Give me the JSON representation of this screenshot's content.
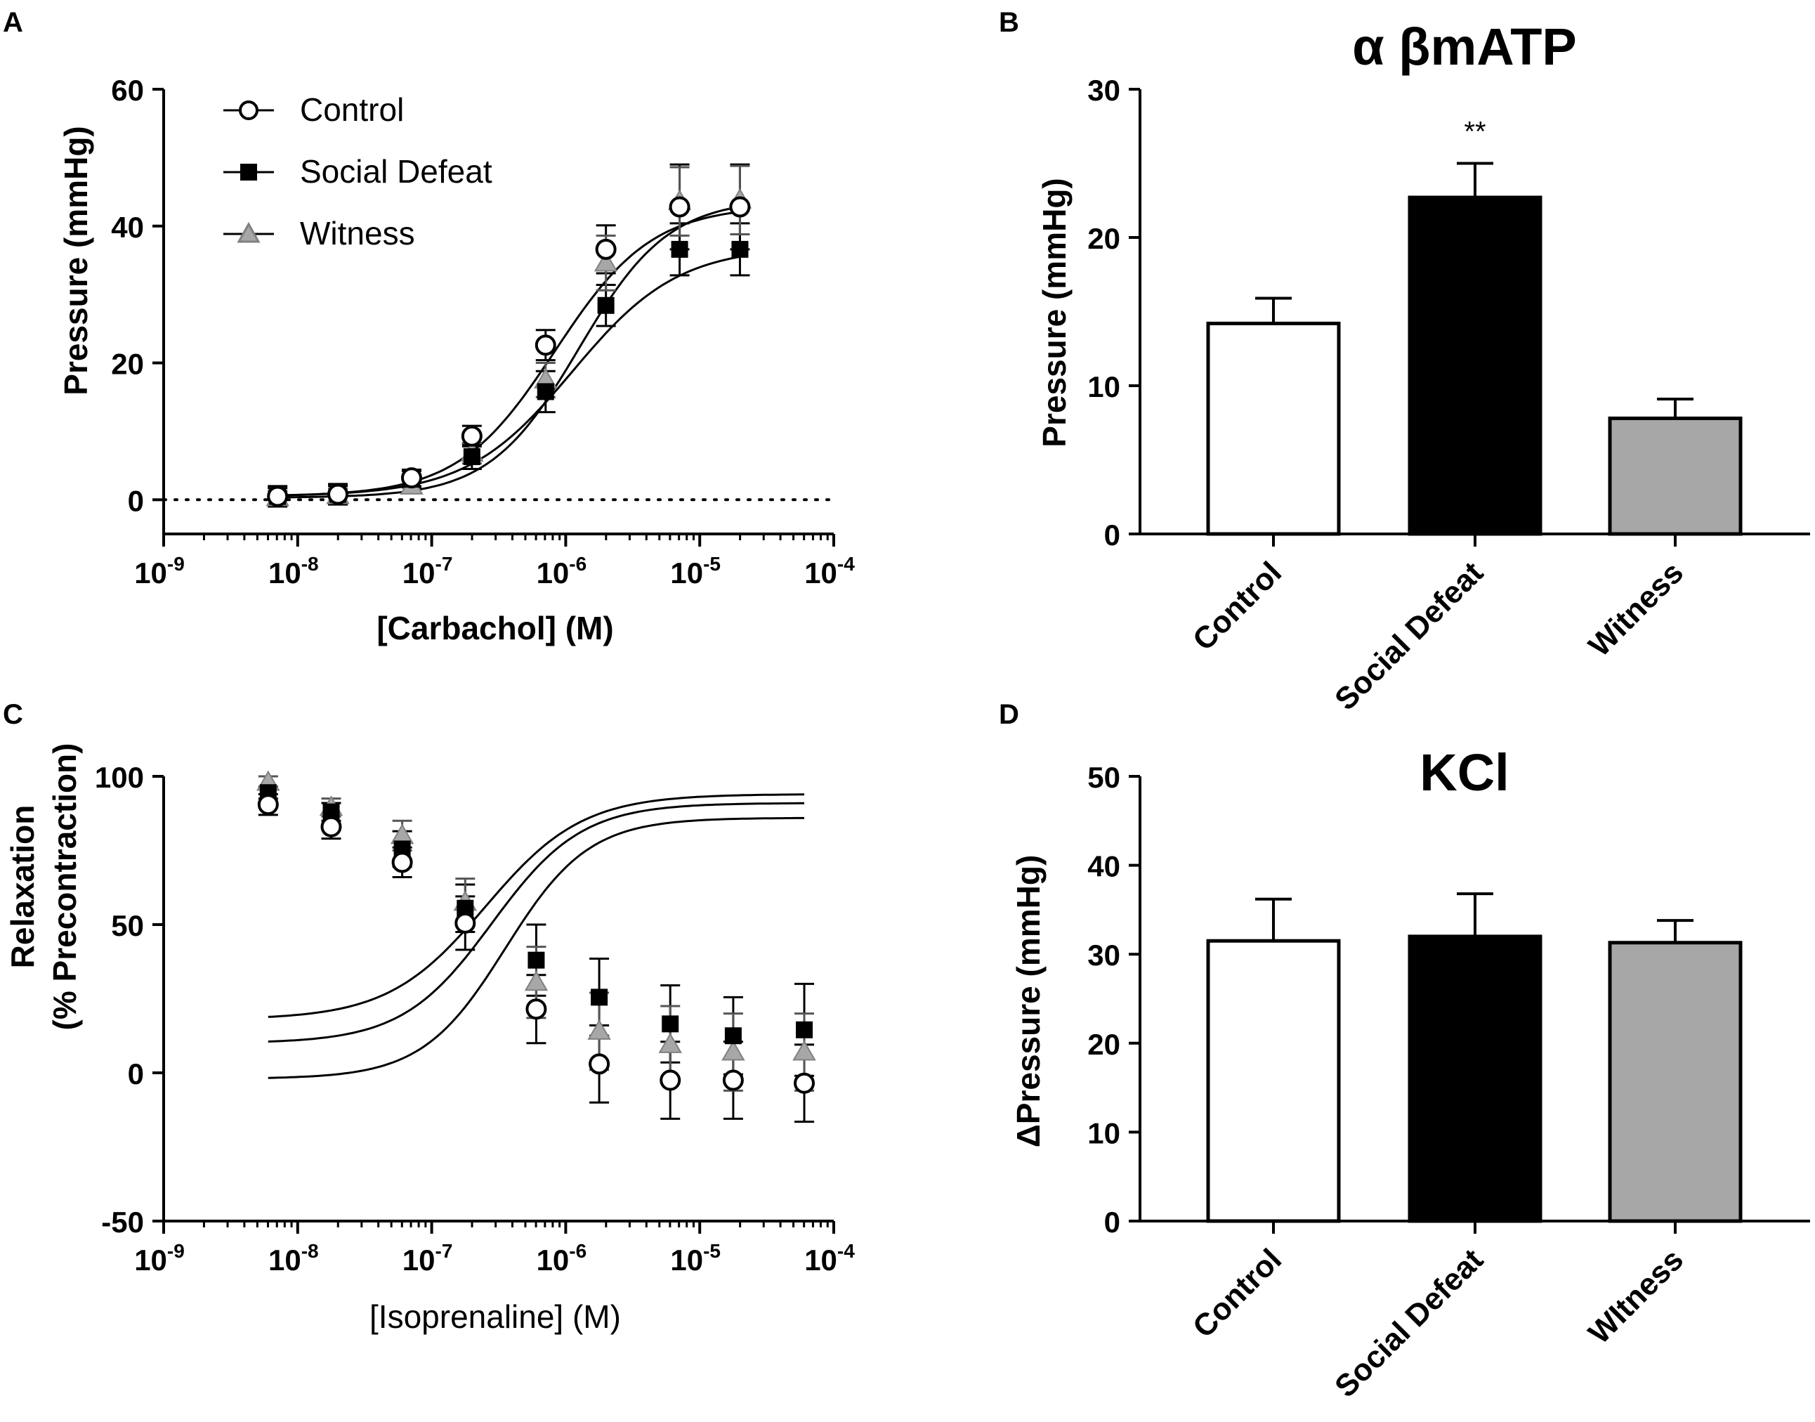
{
  "panels": {
    "a": "A",
    "b": "B",
    "c": "C",
    "d": "D"
  },
  "colors": {
    "control": "#ffffff",
    "social_defeat": "#000000",
    "witness": "#a7a7a7",
    "witness_stroke": "#808080",
    "axis": "#000000"
  },
  "chart_data": [
    {
      "id": "A",
      "type": "line",
      "panel_label": "A",
      "title": "",
      "xlabel": "[Carbachol] (M)",
      "ylabel": "Pressure (mmHg)",
      "x_scale": "log",
      "xlim_exp": [
        -9,
        -4
      ],
      "ylim": [
        -5,
        60
      ],
      "yticks": [
        0,
        20,
        40,
        60
      ],
      "xtick_base": "10",
      "xtick_exps": [
        "-9",
        "-8",
        "-7",
        "-6",
        "-5",
        "-4"
      ],
      "zero_line": "dotted",
      "legend": {
        "placement": "top-left",
        "entries": [
          "Control",
          "Social Defeat",
          "Witness"
        ]
      },
      "series": [
        {
          "name": "Control",
          "marker": "open-circle",
          "fit": {
            "bottom": 0.5,
            "top": 43,
            "logec50": -6.08,
            "hill": 1.2
          },
          "points": [
            {
              "x": -8.15,
              "y": 0.5,
              "err": 1.5
            },
            {
              "x": -7.7,
              "y": 0.8,
              "err": 1.5
            },
            {
              "x": -7.15,
              "y": 3.2,
              "err": 1.2
            },
            {
              "x": -6.7,
              "y": 9.3,
              "err": 1.5
            },
            {
              "x": -6.15,
              "y": 22.6,
              "err": 2.2
            },
            {
              "x": -5.7,
              "y": 36.6,
              "err": 3.5
            },
            {
              "x": -5.15,
              "y": 42.8,
              "err": 6.2
            },
            {
              "x": -4.7,
              "y": 42.8,
              "err": 6.2
            }
          ]
        },
        {
          "name": "Social Defeat",
          "marker": "filled-square",
          "fit": {
            "bottom": 0.5,
            "top": 37,
            "logec50": -5.95,
            "hill": 1.1
          },
          "points": [
            {
              "x": -8.15,
              "y": 0.5,
              "err": 1.2
            },
            {
              "x": -7.7,
              "y": 0.8,
              "err": 1.2
            },
            {
              "x": -7.15,
              "y": 3.0,
              "err": 1.2
            },
            {
              "x": -6.7,
              "y": 6.3,
              "err": 1.8
            },
            {
              "x": -6.15,
              "y": 15.8,
              "err": 3.0
            },
            {
              "x": -5.7,
              "y": 28.4,
              "err": 3.0
            },
            {
              "x": -5.15,
              "y": 36.6,
              "err": 3.8
            },
            {
              "x": -4.7,
              "y": 36.6,
              "err": 3.8
            }
          ]
        },
        {
          "name": "Witness",
          "marker": "gray-triangle",
          "fit": {
            "bottom": 0.3,
            "top": 44,
            "logec50": -5.9,
            "hill": 1.3
          },
          "points": [
            {
              "x": -8.15,
              "y": 0.3,
              "err": 1.0
            },
            {
              "x": -7.7,
              "y": 0.6,
              "err": 1.0
            },
            {
              "x": -7.15,
              "y": 2.0,
              "err": 1.0
            },
            {
              "x": -6.7,
              "y": 6.8,
              "err": 1.5
            },
            {
              "x": -6.15,
              "y": 17.5,
              "err": 2.5
            },
            {
              "x": -5.7,
              "y": 34.6,
              "err": 4.0
            },
            {
              "x": -5.15,
              "y": 43.6,
              "err": 5.0
            },
            {
              "x": -4.7,
              "y": 43.8,
              "err": 5.0
            }
          ]
        }
      ]
    },
    {
      "id": "B",
      "type": "bar",
      "panel_label": "B",
      "title": "α βmATP",
      "xlabel": "",
      "ylabel": "Pressure (mmHg)",
      "ylim": [
        0,
        30
      ],
      "yticks": [
        0,
        10,
        20,
        30
      ],
      "categories": [
        "Control",
        "Social Defeat",
        "Witness"
      ],
      "values": [
        14.2,
        22.7,
        7.8
      ],
      "errors": [
        1.7,
        2.3,
        1.3
      ],
      "annotations": [
        {
          "category": "Social Defeat",
          "text": "**"
        }
      ]
    },
    {
      "id": "C",
      "type": "line",
      "panel_label": "C",
      "title": "",
      "xlabel": "[Isoprenaline] (M)",
      "ylabel_lines": [
        "Relaxation",
        "(% Precontraction)"
      ],
      "x_scale": "log",
      "xlim_exp": [
        -9,
        -4
      ],
      "ylim": [
        -50,
        100
      ],
      "yticks": [
        -50,
        0,
        50,
        100
      ],
      "xtick_base": "10",
      "xtick_exps": [
        "-9",
        "-8",
        "-7",
        "-6",
        "-5",
        "-4"
      ],
      "series": [
        {
          "name": "Control",
          "marker": "open-circle",
          "fit": {
            "bottom": -2,
            "top": 86,
            "logec50": -6.45,
            "hill": 1.4
          },
          "points": [
            {
              "x": -8.22,
              "y": 90.5,
              "err": 3.5
            },
            {
              "x": -7.75,
              "y": 83.0,
              "err": 4.0
            },
            {
              "x": -7.22,
              "y": 71.0,
              "err": 5.0
            },
            {
              "x": -6.75,
              "y": 50.5,
              "err": 9.0
            },
            {
              "x": -6.22,
              "y": 21.5,
              "err": 11.5
            },
            {
              "x": -5.75,
              "y": 3.0,
              "err": 13.0
            },
            {
              "x": -5.22,
              "y": -2.5,
              "err": 13.0
            },
            {
              "x": -4.75,
              "y": -2.5,
              "err": 13.0
            },
            {
              "x": -4.22,
              "y": -3.5,
              "err": 13.0
            }
          ]
        },
        {
          "name": "Social Defeat",
          "marker": "filled-square",
          "fit": {
            "bottom": 18,
            "top": 94,
            "logec50": -6.6,
            "hill": 1.2
          },
          "points": [
            {
              "x": -8.22,
              "y": 94.5,
              "err": 2.0
            },
            {
              "x": -7.75,
              "y": 88.0,
              "err": 3.0
            },
            {
              "x": -7.22,
              "y": 75.5,
              "err": 6.0
            },
            {
              "x": -6.75,
              "y": 55.5,
              "err": 8.0
            },
            {
              "x": -6.22,
              "y": 38.0,
              "err": 12.0
            },
            {
              "x": -5.75,
              "y": 25.5,
              "err": 13.0
            },
            {
              "x": -5.22,
              "y": 16.5,
              "err": 13.0
            },
            {
              "x": -4.75,
              "y": 12.5,
              "err": 13.0
            },
            {
              "x": -4.22,
              "y": 14.5,
              "err": 15.5
            }
          ]
        },
        {
          "name": "Witness",
          "marker": "gray-triangle",
          "fit": {
            "bottom": 10,
            "top": 91,
            "logec50": -6.55,
            "hill": 1.3
          },
          "points": [
            {
              "x": -8.22,
              "y": 98.0,
              "err": 2.0
            },
            {
              "x": -7.75,
              "y": 89.5,
              "err": 3.0
            },
            {
              "x": -7.22,
              "y": 80.0,
              "err": 5.0
            },
            {
              "x": -6.75,
              "y": 57.5,
              "err": 8.0
            },
            {
              "x": -6.22,
              "y": 30.5,
              "err": 12.0
            },
            {
              "x": -5.75,
              "y": 14.0,
              "err": 13.0
            },
            {
              "x": -5.22,
              "y": 9.5,
              "err": 13.0
            },
            {
              "x": -4.75,
              "y": 7.0,
              "err": 13.0
            },
            {
              "x": -4.22,
              "y": 7.0,
              "err": 13.0
            }
          ]
        }
      ]
    },
    {
      "id": "D",
      "type": "bar",
      "panel_label": "D",
      "title": "KCl",
      "xlabel": "",
      "ylabel": "ΔPressure (mmHg)",
      "ylim": [
        0,
        50
      ],
      "yticks": [
        0,
        10,
        20,
        30,
        40,
        50
      ],
      "categories": [
        "Control",
        "Social Defeat",
        "WItness"
      ],
      "values": [
        31.5,
        32.0,
        31.3
      ],
      "errors": [
        4.7,
        4.8,
        2.5
      ]
    }
  ]
}
